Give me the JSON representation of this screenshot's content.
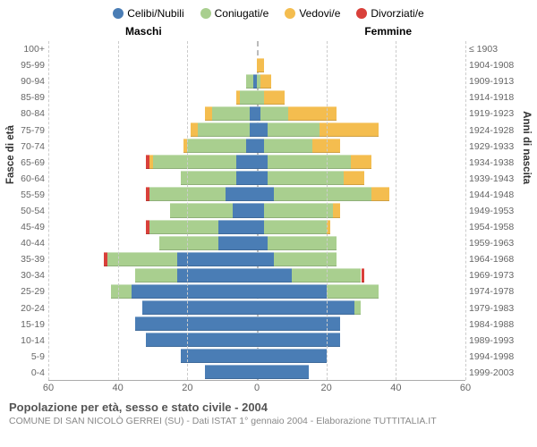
{
  "legend": [
    {
      "label": "Celibi/Nubili",
      "color": "#4a7db5"
    },
    {
      "label": "Coniugati/e",
      "color": "#a9cf8f"
    },
    {
      "label": "Vedovi/e",
      "color": "#f4bd4f"
    },
    {
      "label": "Divorziati/e",
      "color": "#d9403a"
    }
  ],
  "gender_left": "Maschi",
  "gender_right": "Femmine",
  "axis_left_title": "Fasce di età",
  "axis_right_title": "Anni di nascita",
  "footer_title": "Popolazione per età, sesso e stato civile - 2004",
  "footer_sub": "COMUNE DI SAN NICOLÒ GERREI (SU) - Dati ISTAT 1° gennaio 2004 - Elaborazione TUTTITALIA.IT",
  "x_max": 60,
  "x_ticks": [
    60,
    40,
    20,
    0,
    20,
    40,
    60
  ],
  "colors": {
    "celibi": "#4a7db5",
    "coniugati": "#a9cf8f",
    "vedovi": "#f4bd4f",
    "divorziati": "#d9403a",
    "grid": "#cccccc",
    "center": "#bbbbbb",
    "bg": "#ffffff"
  },
  "rows": [
    {
      "age": "100+",
      "birth": "≤ 1903",
      "m": {
        "c": 0,
        "m": 0,
        "w": 0,
        "d": 0
      },
      "f": {
        "c": 0,
        "m": 0,
        "w": 0,
        "d": 0
      }
    },
    {
      "age": "95-99",
      "birth": "1904-1908",
      "m": {
        "c": 0,
        "m": 0,
        "w": 0,
        "d": 0
      },
      "f": {
        "c": 0,
        "m": 0,
        "w": 2,
        "d": 0
      }
    },
    {
      "age": "90-94",
      "birth": "1909-1913",
      "m": {
        "c": 1,
        "m": 2,
        "w": 0,
        "d": 0
      },
      "f": {
        "c": 0,
        "m": 1,
        "w": 3,
        "d": 0
      }
    },
    {
      "age": "85-89",
      "birth": "1914-1918",
      "m": {
        "c": 0,
        "m": 5,
        "w": 1,
        "d": 0
      },
      "f": {
        "c": 0,
        "m": 2,
        "w": 6,
        "d": 0
      }
    },
    {
      "age": "80-84",
      "birth": "1919-1923",
      "m": {
        "c": 2,
        "m": 11,
        "w": 2,
        "d": 0
      },
      "f": {
        "c": 1,
        "m": 8,
        "w": 14,
        "d": 0
      }
    },
    {
      "age": "75-79",
      "birth": "1924-1928",
      "m": {
        "c": 2,
        "m": 15,
        "w": 2,
        "d": 0
      },
      "f": {
        "c": 3,
        "m": 15,
        "w": 17,
        "d": 0
      }
    },
    {
      "age": "70-74",
      "birth": "1929-1933",
      "m": {
        "c": 3,
        "m": 17,
        "w": 1,
        "d": 0
      },
      "f": {
        "c": 2,
        "m": 14,
        "w": 8,
        "d": 0
      }
    },
    {
      "age": "65-69",
      "birth": "1934-1938",
      "m": {
        "c": 6,
        "m": 24,
        "w": 1,
        "d": 1
      },
      "f": {
        "c": 3,
        "m": 24,
        "w": 6,
        "d": 0
      }
    },
    {
      "age": "60-64",
      "birth": "1939-1943",
      "m": {
        "c": 6,
        "m": 16,
        "w": 0,
        "d": 0
      },
      "f": {
        "c": 3,
        "m": 22,
        "w": 6,
        "d": 0
      }
    },
    {
      "age": "55-59",
      "birth": "1944-1948",
      "m": {
        "c": 9,
        "m": 22,
        "w": 0,
        "d": 1
      },
      "f": {
        "c": 5,
        "m": 28,
        "w": 5,
        "d": 0
      }
    },
    {
      "age": "50-54",
      "birth": "1949-1953",
      "m": {
        "c": 7,
        "m": 18,
        "w": 0,
        "d": 0
      },
      "f": {
        "c": 2,
        "m": 20,
        "w": 2,
        "d": 0
      }
    },
    {
      "age": "45-49",
      "birth": "1954-1958",
      "m": {
        "c": 11,
        "m": 20,
        "w": 0,
        "d": 1
      },
      "f": {
        "c": 2,
        "m": 18,
        "w": 1,
        "d": 0
      }
    },
    {
      "age": "40-44",
      "birth": "1959-1963",
      "m": {
        "c": 11,
        "m": 17,
        "w": 0,
        "d": 0
      },
      "f": {
        "c": 3,
        "m": 20,
        "w": 0,
        "d": 0
      }
    },
    {
      "age": "35-39",
      "birth": "1964-1968",
      "m": {
        "c": 23,
        "m": 20,
        "w": 0,
        "d": 1
      },
      "f": {
        "c": 5,
        "m": 18,
        "w": 0,
        "d": 0
      }
    },
    {
      "age": "30-34",
      "birth": "1969-1973",
      "m": {
        "c": 23,
        "m": 12,
        "w": 0,
        "d": 0
      },
      "f": {
        "c": 10,
        "m": 20,
        "w": 0,
        "d": 1
      }
    },
    {
      "age": "25-29",
      "birth": "1974-1978",
      "m": {
        "c": 36,
        "m": 6,
        "w": 0,
        "d": 0
      },
      "f": {
        "c": 20,
        "m": 15,
        "w": 0,
        "d": 0
      }
    },
    {
      "age": "20-24",
      "birth": "1979-1983",
      "m": {
        "c": 33,
        "m": 0,
        "w": 0,
        "d": 0
      },
      "f": {
        "c": 28,
        "m": 2,
        "w": 0,
        "d": 0
      }
    },
    {
      "age": "15-19",
      "birth": "1984-1988",
      "m": {
        "c": 35,
        "m": 0,
        "w": 0,
        "d": 0
      },
      "f": {
        "c": 24,
        "m": 0,
        "w": 0,
        "d": 0
      }
    },
    {
      "age": "10-14",
      "birth": "1989-1993",
      "m": {
        "c": 32,
        "m": 0,
        "w": 0,
        "d": 0
      },
      "f": {
        "c": 24,
        "m": 0,
        "w": 0,
        "d": 0
      }
    },
    {
      "age": "5-9",
      "birth": "1994-1998",
      "m": {
        "c": 22,
        "m": 0,
        "w": 0,
        "d": 0
      },
      "f": {
        "c": 20,
        "m": 0,
        "w": 0,
        "d": 0
      }
    },
    {
      "age": "0-4",
      "birth": "1999-2003",
      "m": {
        "c": 15,
        "m": 0,
        "w": 0,
        "d": 0
      },
      "f": {
        "c": 15,
        "m": 0,
        "w": 0,
        "d": 0
      }
    }
  ]
}
